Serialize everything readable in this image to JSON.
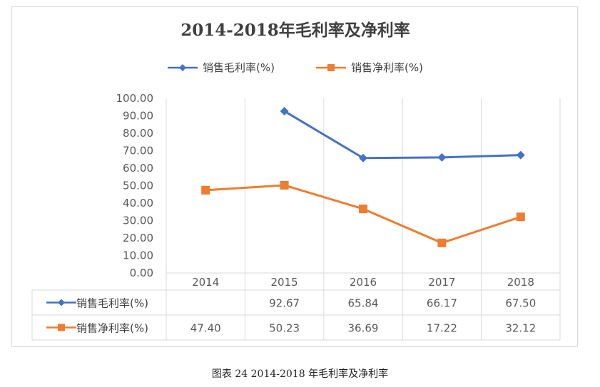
{
  "chart_data": {
    "type": "line",
    "title": "2014-2018年毛利率及净利率",
    "categories": [
      "2014",
      "2015",
      "2016",
      "2017",
      "2018"
    ],
    "ylim": [
      0,
      100
    ],
    "yticks": [
      "0.00",
      "10.00",
      "20.00",
      "30.00",
      "40.00",
      "50.00",
      "60.00",
      "70.00",
      "80.00",
      "90.00",
      "100.00"
    ],
    "grid": "vertical",
    "legend_position": "top",
    "series": [
      {
        "name": "销售毛利率(%)",
        "color": "#4472c4",
        "marker": "diamond",
        "values": [
          null,
          92.67,
          65.84,
          66.17,
          67.5
        ],
        "labels": [
          "",
          "92.67",
          "65.84",
          "66.17",
          "67.50"
        ]
      },
      {
        "name": "销售净利率(%)",
        "color": "#ed7d31",
        "marker": "square",
        "values": [
          47.4,
          50.23,
          36.69,
          17.22,
          32.12
        ],
        "labels": [
          "47.40",
          "50.23",
          "36.69",
          "17.22",
          "32.12"
        ]
      }
    ]
  },
  "caption": "图表 24 2014-2018 年毛利率及净利率"
}
